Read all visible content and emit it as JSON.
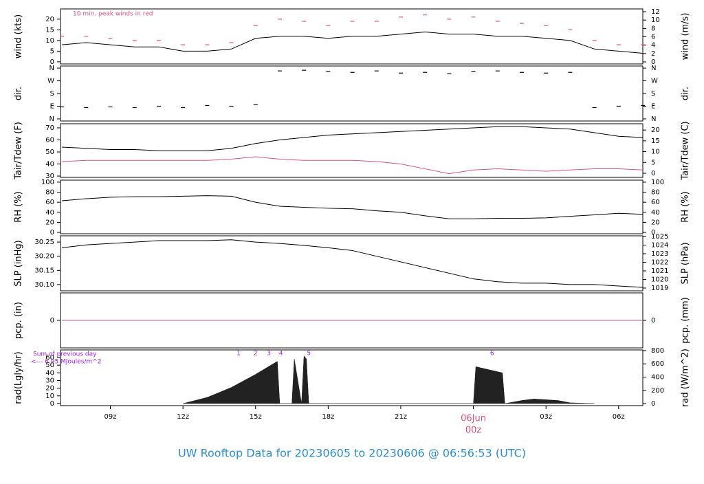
{
  "chart_data": [
    {
      "type": "line",
      "ylabel": "wind (kts)",
      "y2label": "wind (m/s)",
      "annotation": "10 min. peak winds in red",
      "xlim": [
        6.94,
        31
      ],
      "ylim": [
        -1,
        24.8
      ],
      "yticks": [
        0,
        5,
        10,
        15,
        20
      ],
      "y2lim": [
        -0.49,
        12.66
      ],
      "y2ticks": [
        0,
        2,
        4,
        6,
        8,
        10,
        12
      ],
      "series": [
        {
          "name": "wind",
          "kind": "line",
          "color": "#000000",
          "x": [
            7,
            8,
            9,
            10,
            11,
            12,
            13,
            14,
            15,
            16,
            17,
            18,
            19,
            20,
            21,
            22,
            23,
            24,
            25,
            26,
            27,
            28,
            29,
            30,
            31
          ],
          "values": [
            8,
            9,
            8,
            7,
            7,
            5,
            5,
            6,
            11,
            12,
            12,
            11,
            12,
            12,
            13,
            14,
            13,
            13,
            12,
            12,
            11,
            10,
            6,
            5,
            4
          ]
        },
        {
          "name": "peak",
          "kind": "dash",
          "color": "#e0507a",
          "x": [
            7,
            8,
            9,
            10,
            11,
            12,
            13,
            14,
            15,
            16,
            17,
            18,
            19,
            20,
            21,
            22,
            23,
            24,
            25,
            26,
            27,
            28,
            29,
            30,
            31
          ],
          "values": [
            12,
            12,
            11,
            10,
            10,
            8,
            8,
            9,
            17,
            20,
            19,
            17,
            19,
            19,
            21,
            22,
            20,
            21,
            19,
            18,
            17,
            15,
            10,
            8,
            8
          ]
        }
      ]
    },
    {
      "type": "scatter",
      "ylabel": "dir.",
      "y2label": "dir.",
      "xlim": [
        6.94,
        31
      ],
      "ylim": [
        -15,
        375
      ],
      "yticks": [
        {
          "value": 0,
          "label": "N"
        },
        {
          "value": 90,
          "label": "E"
        },
        {
          "value": 180,
          "label": "S"
        },
        {
          "value": 270,
          "label": "W"
        },
        {
          "value": 360,
          "label": "N"
        }
      ],
      "y2lim": [
        -15,
        375
      ],
      "y2ticks": [
        {
          "value": 0,
          "label": "N"
        },
        {
          "value": 90,
          "label": "E"
        },
        {
          "value": 180,
          "label": "S"
        },
        {
          "value": 270,
          "label": "W"
        },
        {
          "value": 360,
          "label": "N"
        }
      ],
      "series": [
        {
          "name": "direction",
          "kind": "dash",
          "color": "#000000",
          "x": [
            7,
            8,
            9,
            10,
            11,
            12,
            13,
            14,
            15,
            16,
            17,
            18,
            19,
            20,
            21,
            22,
            23,
            24,
            25,
            26,
            27,
            28,
            29,
            30,
            31
          ],
          "values": [
            85,
            80,
            85,
            80,
            90,
            80,
            95,
            90,
            100,
            340,
            345,
            335,
            330,
            340,
            325,
            330,
            320,
            335,
            340,
            330,
            325,
            330,
            80,
            90,
            95
          ]
        }
      ]
    },
    {
      "type": "line",
      "ylabel": "Tair/Tdew (F)",
      "y2label": "Tair/Tdew (C)",
      "xlim": [
        6.94,
        31
      ],
      "ylim": [
        28.9,
        73.4
      ],
      "yticks": [
        30,
        40,
        50,
        60,
        70
      ],
      "y2lim": [
        -1.9,
        22.9
      ],
      "y2ticks": [
        0,
        5,
        10,
        15,
        20
      ],
      "series": [
        {
          "name": "Tair",
          "kind": "line",
          "color": "#000000",
          "x": [
            7,
            8,
            9,
            10,
            11,
            12,
            13,
            14,
            15,
            16,
            17,
            18,
            19,
            20,
            21,
            22,
            23,
            24,
            25,
            26,
            27,
            28,
            29,
            30,
            31
          ],
          "values": [
            54,
            53,
            52,
            52,
            51,
            51,
            51,
            53,
            57,
            60,
            62,
            64,
            65,
            66,
            67,
            68,
            69,
            70,
            71,
            71,
            70,
            69,
            66,
            63,
            62
          ]
        },
        {
          "name": "Tdew",
          "kind": "line",
          "color": "#e0507a",
          "x": [
            7,
            8,
            9,
            10,
            11,
            12,
            13,
            14,
            15,
            16,
            17,
            18,
            19,
            20,
            21,
            22,
            23,
            24,
            25,
            26,
            27,
            28,
            29,
            30,
            31
          ],
          "values": [
            42,
            43,
            43,
            43,
            43,
            43,
            43,
            44,
            46,
            44,
            43,
            43,
            43,
            42,
            40,
            36,
            32,
            35,
            36,
            35,
            34,
            35,
            36,
            36,
            35
          ]
        }
      ]
    },
    {
      "type": "line",
      "ylabel": "RH (%)",
      "y2label": "RH (%)",
      "xlim": [
        6.94,
        31
      ],
      "ylim": [
        -2.7,
        104
      ],
      "yticks": [
        0,
        20,
        40,
        60,
        80,
        100
      ],
      "y2lim": [
        -2.7,
        104
      ],
      "y2ticks": [
        0,
        20,
        40,
        60,
        80,
        100
      ],
      "series": [
        {
          "name": "RH",
          "kind": "line",
          "color": "#000000",
          "x": [
            7,
            8,
            9,
            10,
            11,
            12,
            13,
            14,
            15,
            16,
            17,
            18,
            19,
            20,
            21,
            22,
            23,
            24,
            25,
            26,
            27,
            28,
            29,
            30,
            31
          ],
          "values": [
            63,
            67,
            70,
            71,
            71,
            72,
            73,
            72,
            60,
            52,
            50,
            48,
            47,
            43,
            40,
            33,
            27,
            27,
            28,
            28,
            29,
            32,
            35,
            38,
            36
          ]
        }
      ]
    },
    {
      "type": "line",
      "ylabel": "SLP (inHg)",
      "y2label": "SLP (hPa)",
      "xlim": [
        6.94,
        31
      ],
      "ylim": [
        30.078,
        30.272
      ],
      "yticks": [
        {
          "value": 30.1,
          "label": "30.10"
        },
        30.15,
        {
          "value": 30.2,
          "label": "30.20"
        },
        30.25
      ],
      "y2lim": [
        1018.68,
        1025.08
      ],
      "y2ticks": [
        1019,
        1020,
        1021,
        1022,
        1023,
        1024,
        1025
      ],
      "series": [
        {
          "name": "SLP",
          "kind": "line",
          "color": "#000000",
          "x": [
            7,
            8,
            9,
            10,
            11,
            12,
            13,
            14,
            15,
            16,
            17,
            18,
            19,
            20,
            21,
            22,
            23,
            24,
            25,
            26,
            27,
            28,
            29,
            30,
            31
          ],
          "values": [
            30.23,
            30.24,
            30.245,
            30.25,
            30.255,
            30.255,
            30.255,
            30.258,
            30.25,
            30.245,
            30.238,
            30.23,
            30.22,
            30.2,
            30.18,
            30.16,
            30.14,
            30.12,
            30.11,
            30.105,
            30.105,
            30.1,
            30.1,
            30.095,
            30.09
          ]
        }
      ]
    },
    {
      "type": "line",
      "ylabel": "pcp. (in)",
      "y2label": "pcp. (mm)",
      "xlim": [
        6.94,
        31
      ],
      "ylim": [
        -0.05,
        0.05
      ],
      "yticks": [
        0
      ],
      "y2lim": [
        -1.27,
        1.27
      ],
      "y2ticks": [
        0
      ],
      "series": [
        {
          "name": "pcp",
          "kind": "line",
          "color": "#e0507a",
          "x": [
            7,
            31
          ],
          "values": [
            0,
            0
          ]
        }
      ]
    },
    {
      "type": "area",
      "ylabel": "rad(Lgly/hr)",
      "y2label": "rad (W/m^2)",
      "note": [
        "Sum of previous day",
        "<--- 6.95 MJoules/m^2"
      ],
      "note_color": "#a020f0",
      "markers": [
        {
          "label": "1",
          "x": 14.3
        },
        {
          "label": "2",
          "x": 15.0
        },
        {
          "label": "3",
          "x": 15.55
        },
        {
          "label": "4",
          "x": 16.05
        },
        {
          "label": "5",
          "x": 17.2
        },
        {
          "label": "6",
          "x": 24.77
        }
      ],
      "xlim": [
        6.94,
        31
      ],
      "ylim": [
        -2.7,
        69.8
      ],
      "yticks": [
        0,
        10,
        20,
        30,
        40,
        50,
        60
      ],
      "y2lim": [
        -31,
        810
      ],
      "y2ticks": [
        0,
        200,
        400,
        600,
        800
      ],
      "xticks": [
        {
          "value": 9,
          "label": "09z"
        },
        {
          "value": 12,
          "label": "12z"
        },
        {
          "value": 15,
          "label": "15z"
        },
        {
          "value": 18,
          "label": "18z"
        },
        {
          "value": 21,
          "label": "21z"
        },
        {
          "value": 24,
          "label": "00z"
        },
        {
          "value": 27,
          "label": "03z"
        },
        {
          "value": 30,
          "label": "06z"
        }
      ],
      "date_label": "06Jun",
      "date_color": "#e0507a",
      "series": [
        {
          "name": "rad",
          "kind": "area",
          "color": "#222222",
          "x": [
            12,
            13,
            14,
            15,
            15.9,
            16.0,
            16.5,
            16.6,
            16.9,
            17.0,
            17.1,
            17.2,
            24.0,
            24.1,
            25.2,
            25.3,
            26.0,
            26.5,
            27.5,
            28.0,
            29
          ],
          "values": [
            0,
            8,
            21,
            38,
            55,
            0,
            0,
            58,
            0,
            62,
            58,
            0,
            0,
            48,
            40,
            0,
            4,
            6,
            4,
            1,
            0
          ]
        }
      ]
    }
  ],
  "title": "UW Rooftop Data for 20230605  to  20230606 @ 06:56:53  (UTC)"
}
